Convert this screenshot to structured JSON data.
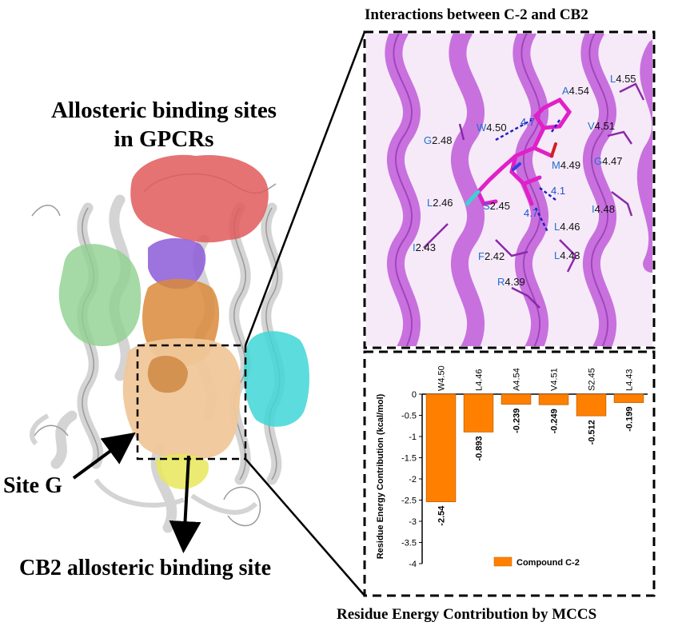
{
  "titles": {
    "interactions": "Interactions between C-2 and CB2",
    "allosteric_line1": "Allosteric binding sites",
    "allosteric_line2": "in GPCRs",
    "site_g": "Site G",
    "cb2_site": "CB2 allosteric binding site",
    "mccs": "Residue Energy Contribution by MCCS"
  },
  "colors": {
    "helix": "#d8d8d8",
    "red_site": "#e05a5a",
    "green_site": "#8fd08f",
    "purple_site": "#8c5ad8",
    "orange_site": "#d98a3a",
    "peach_site": "#f0c79a",
    "cyan_site": "#3fd6d6",
    "yellow_site": "#e8e85a",
    "magenta_helix": "#c060d8",
    "bar": "#ff8000"
  },
  "residue_labels": [
    {
      "prefix": "A",
      "rest": "4.54"
    },
    {
      "prefix": "L",
      "rest": "4.55"
    },
    {
      "prefix": "W",
      "rest": "4.50"
    },
    {
      "prefix": "V",
      "rest": "4.51"
    },
    {
      "prefix": "G",
      "rest": "2.48"
    },
    {
      "prefix": "M",
      "rest": "4.49"
    },
    {
      "prefix": "G",
      "rest": "4.47"
    },
    {
      "prefix": "L",
      "rest": "2.46"
    },
    {
      "prefix": "S",
      "rest": "2.45"
    },
    {
      "prefix": "I",
      "rest": "4.48"
    },
    {
      "prefix": "L",
      "rest": "4.46"
    },
    {
      "prefix": "I",
      "rest": "2.43"
    },
    {
      "prefix": "F",
      "rest": "2.42"
    },
    {
      "prefix": "L",
      "rest": "4.43"
    },
    {
      "prefix": "R",
      "rest": "4.39"
    }
  ],
  "distances": [
    "4.7",
    "4.1",
    "4.7"
  ],
  "chart_data": {
    "type": "bar",
    "categories": [
      "W4.50",
      "L4.46",
      "A4.54",
      "V4.51",
      "S2.45",
      "L4.43"
    ],
    "series": [
      {
        "name": "Compound C-2",
        "values": [
          -2.54,
          -0.893,
          -0.239,
          -0.249,
          -0.512,
          -0.199
        ]
      }
    ],
    "value_labels": [
      "-2.54",
      "-0.893",
      "-0.239",
      "-0.249",
      "-0.512",
      "-0.199"
    ],
    "ylabel": "Residue Energy Contribution (kcal/mol)",
    "ylim": [
      -4,
      0
    ],
    "yticks": [
      "0",
      "-0.5",
      "-1",
      "-1.5",
      "-2",
      "-2.5",
      "-3",
      "-3.5",
      "-4"
    ],
    "ytick_values": [
      0,
      -0.5,
      -1,
      -1.5,
      -2,
      -2.5,
      -3,
      -3.5,
      -4
    ],
    "legend": "Compound C-2",
    "legend_position": "bottom-center",
    "grid": false
  }
}
